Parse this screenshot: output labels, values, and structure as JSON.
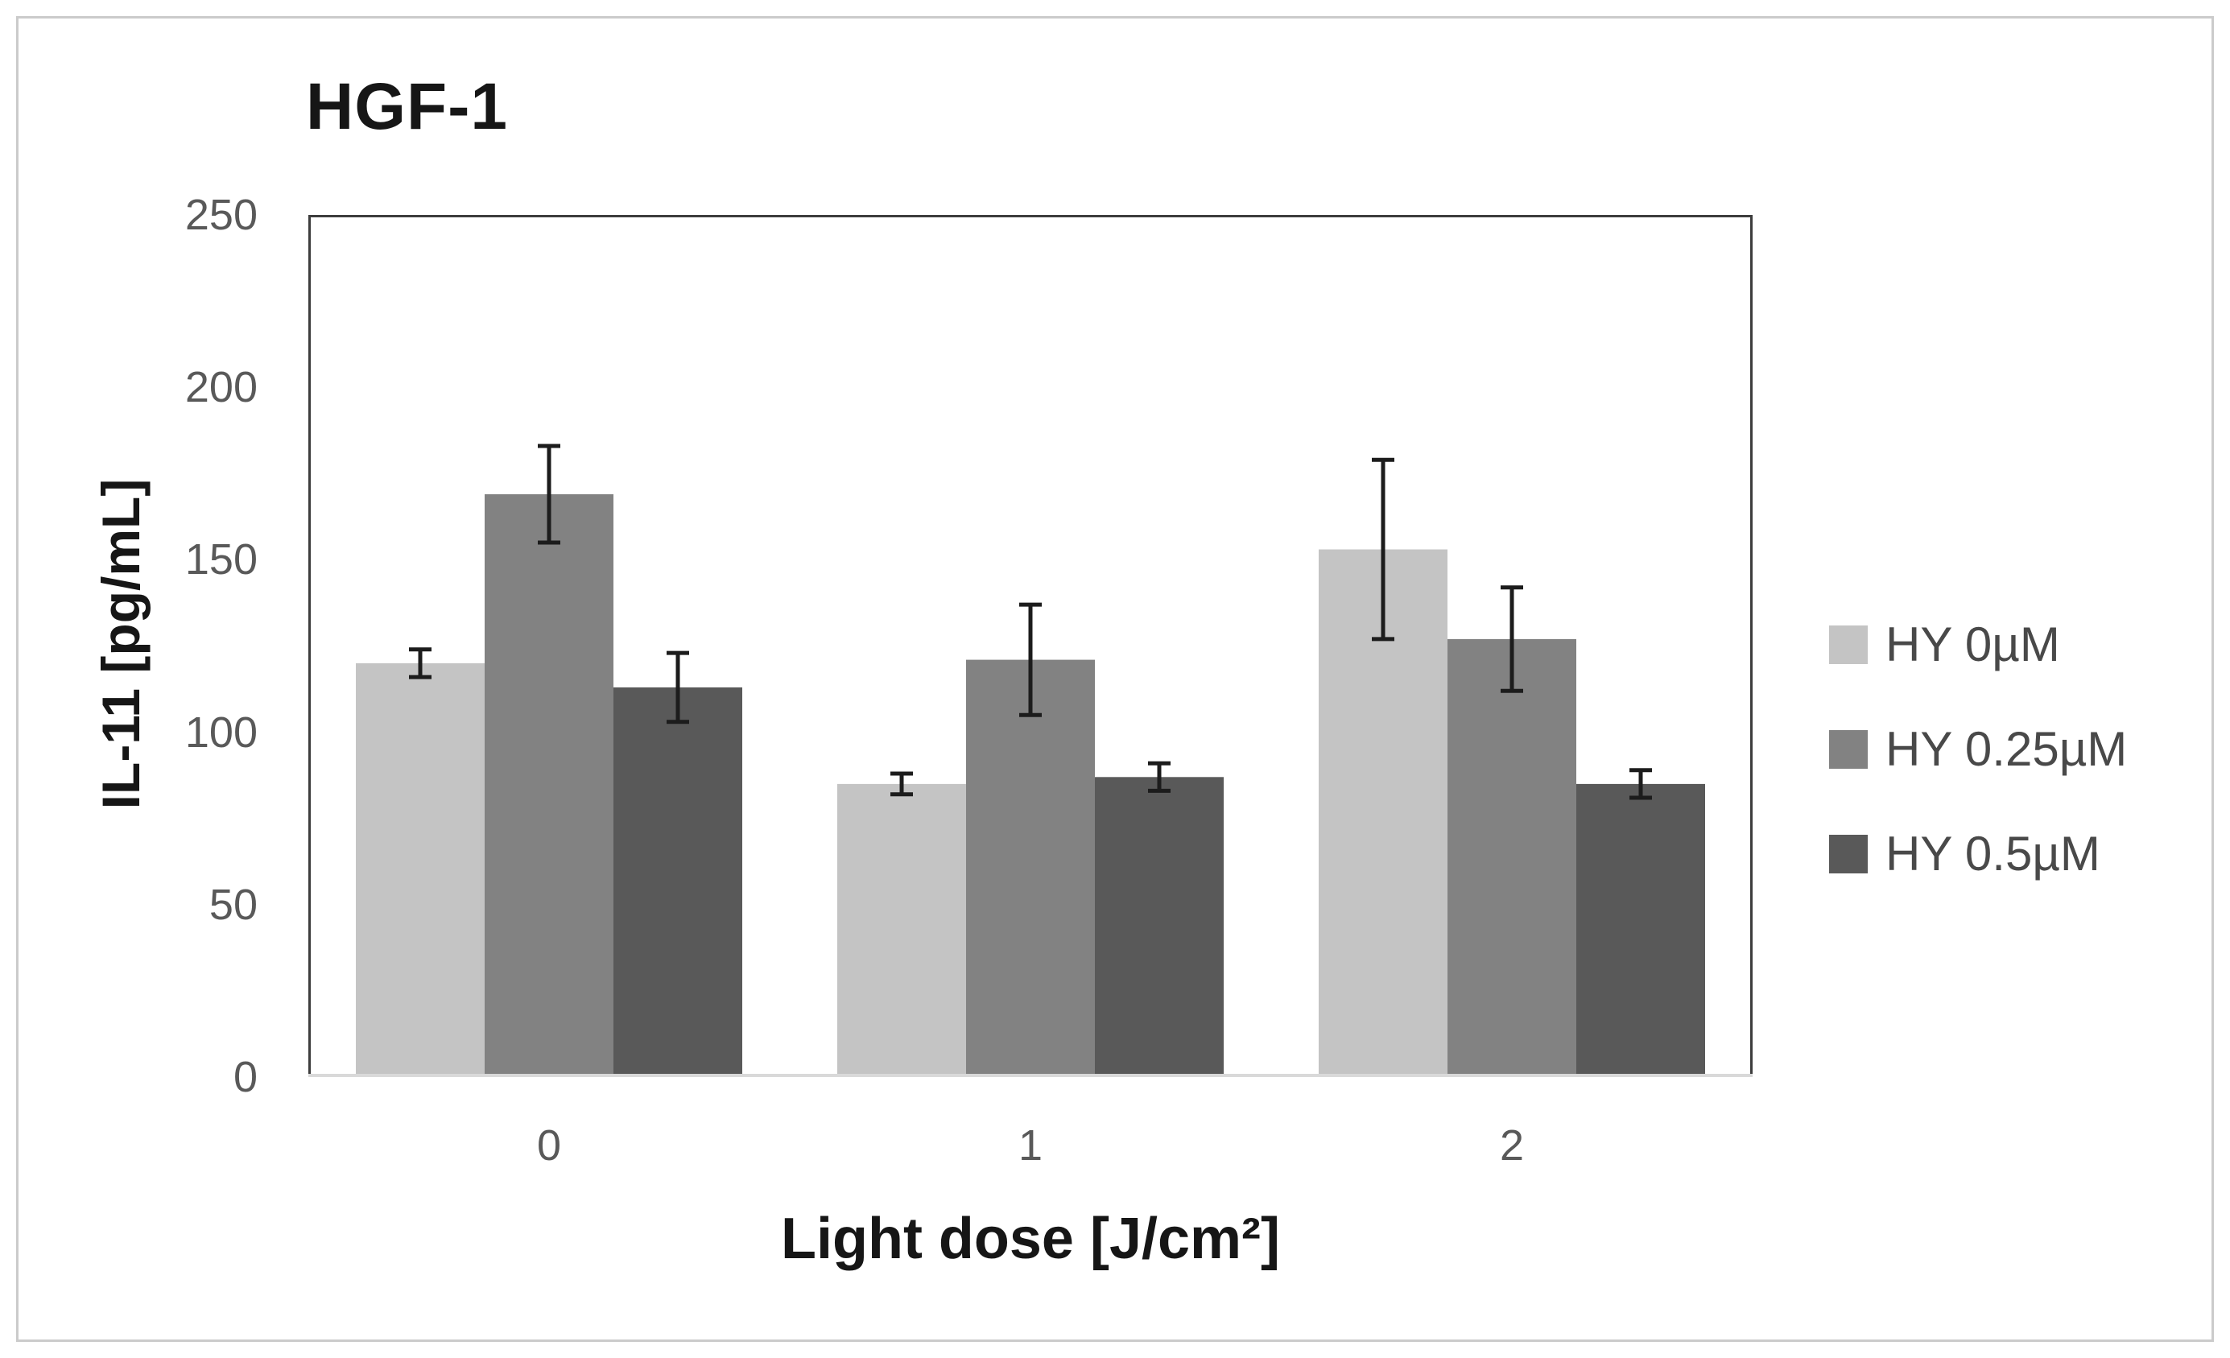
{
  "figure": {
    "background": "#ffffff",
    "border_color": "#cbcbcb"
  },
  "chart_data": {
    "type": "bar",
    "title": "HGF-1",
    "ylabel": "IL-11 [pg/mL]",
    "xlabel": "Light dose [J/cm²]",
    "categories": [
      "0",
      "1",
      "2"
    ],
    "series": [
      {
        "name": "HY 0µM",
        "color": "#c4c4c4",
        "values": [
          120,
          85,
          153
        ],
        "errors": [
          4,
          3,
          26
        ]
      },
      {
        "name": "HY 0.25µM",
        "color": "#828282",
        "values": [
          169,
          121,
          127
        ],
        "errors": [
          14,
          16,
          15
        ]
      },
      {
        "name": "HY 0.5µM",
        "color": "#595959",
        "values": [
          113,
          87,
          85
        ],
        "errors": [
          10,
          4,
          4
        ]
      }
    ],
    "ylim": [
      0,
      250
    ],
    "yticks": [
      0,
      50,
      100,
      150,
      200,
      250
    ],
    "grid": false,
    "legend_position": "right",
    "error_bars": true,
    "colors": {
      "axis_frame": "#3d3d3d",
      "baseline": "#d9d9d9",
      "error_bar": "#1c1c1c",
      "tick_label": "#595959",
      "legend_text": "#494949",
      "title_text": "#161616"
    }
  }
}
